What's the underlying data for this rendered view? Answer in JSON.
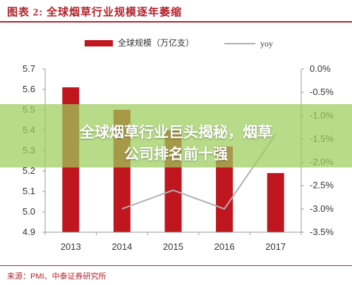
{
  "figure": {
    "title": "图表 2: 全球烟草行业规模逐年萎缩",
    "source": "来源：PMI、中泰证券研究所"
  },
  "overlay": {
    "line1": "全球烟草行业巨头揭秘，烟草",
    "line2": "公司排名前十强"
  },
  "colors": {
    "bar": "#c0161f",
    "line": "#b0b0b0",
    "accent": "#b5222c"
  },
  "chart_data": {
    "type": "bar",
    "categories": [
      "2013",
      "2014",
      "2015",
      "2016",
      "2017"
    ],
    "series": [
      {
        "name": "全球规模（万亿支）",
        "type": "bar",
        "axis": "left",
        "values": [
          5.61,
          5.5,
          5.4,
          5.32,
          5.19
        ]
      },
      {
        "name": "yoy",
        "type": "line",
        "axis": "right",
        "values": [
          null,
          -3.0,
          -2.6,
          -3.0,
          -1.4
        ]
      }
    ],
    "ylim": [
      4.9,
      5.7
    ],
    "yticks": [
      "4.9",
      "5.0",
      "5.1",
      "5.2",
      "5.3",
      "5.4",
      "5.5",
      "5.6",
      "5.7"
    ],
    "y2lim": [
      -3.5,
      0.0
    ],
    "y2ticks": [
      "0.0%",
      "-0.5%",
      "-1.0%",
      "-1.5%",
      "-2.0%",
      "-2.5%",
      "-3.0%",
      "-3.5%"
    ],
    "legend": "top",
    "grid": false
  }
}
